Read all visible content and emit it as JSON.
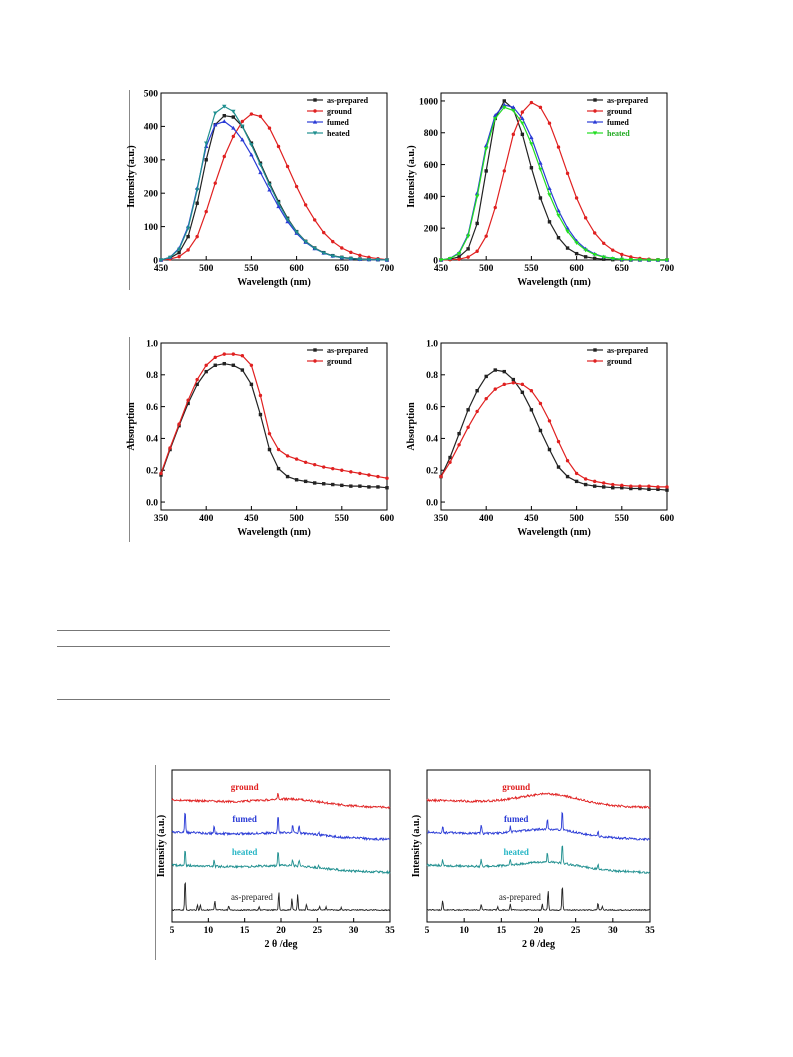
{
  "chart_data": [
    {
      "id": "pl_left",
      "type": "line",
      "xlabel": "Wavelength (nm)",
      "ylabel": "Intensity (a.u.)",
      "xlim": [
        450,
        700
      ],
      "ylim": [
        0,
        500
      ],
      "xticks": [
        450,
        500,
        550,
        600,
        650,
        700
      ],
      "yticks": [
        0,
        100,
        200,
        300,
        400,
        500
      ],
      "legend_position": "top-right",
      "series": [
        {
          "name": "as-prepared",
          "color": "#222222",
          "marker": "square",
          "x": [
            450,
            460,
            470,
            480,
            490,
            500,
            510,
            520,
            530,
            540,
            550,
            560,
            570,
            580,
            590,
            600,
            610,
            620,
            630,
            640,
            650,
            660,
            670,
            680,
            690,
            700
          ],
          "y": [
            0,
            6,
            22,
            70,
            170,
            300,
            405,
            432,
            428,
            400,
            350,
            290,
            230,
            175,
            125,
            85,
            56,
            36,
            22,
            13,
            8,
            5,
            3,
            2,
            1,
            0
          ]
        },
        {
          "name": "ground",
          "color": "#e02020",
          "marker": "circle",
          "x": [
            450,
            460,
            470,
            480,
            490,
            500,
            510,
            520,
            530,
            540,
            550,
            560,
            570,
            580,
            590,
            600,
            610,
            620,
            630,
            640,
            650,
            660,
            670,
            680,
            690,
            700
          ],
          "y": [
            0,
            3,
            10,
            30,
            70,
            145,
            230,
            310,
            370,
            415,
            437,
            430,
            395,
            340,
            280,
            220,
            165,
            120,
            82,
            55,
            36,
            23,
            14,
            8,
            4,
            1
          ]
        },
        {
          "name": "fumed",
          "color": "#2a3bd6",
          "marker": "triangle-up",
          "x": [
            450,
            460,
            470,
            480,
            490,
            500,
            510,
            520,
            530,
            540,
            550,
            560,
            570,
            580,
            590,
            600,
            610,
            620,
            630,
            640,
            650,
            660,
            670,
            680,
            690,
            700
          ],
          "y": [
            0,
            8,
            35,
            100,
            215,
            340,
            405,
            415,
            395,
            360,
            315,
            262,
            210,
            160,
            115,
            80,
            53,
            34,
            21,
            12,
            7,
            4,
            2,
            1,
            1,
            0
          ]
        },
        {
          "name": "heated",
          "color": "#1f8f8f",
          "marker": "triangle-down",
          "x": [
            450,
            460,
            470,
            480,
            490,
            500,
            510,
            520,
            530,
            540,
            550,
            560,
            570,
            580,
            590,
            600,
            610,
            620,
            630,
            640,
            650,
            660,
            670,
            680,
            690,
            700
          ],
          "y": [
            0,
            8,
            32,
            95,
            210,
            350,
            440,
            460,
            445,
            400,
            345,
            285,
            225,
            170,
            122,
            84,
            55,
            35,
            21,
            12,
            7,
            4,
            2,
            1,
            1,
            0
          ]
        }
      ]
    },
    {
      "id": "pl_right",
      "type": "line",
      "xlabel": "Wavelength (nm)",
      "ylabel": "Intensity (a.u.)",
      "xlim": [
        450,
        700
      ],
      "ylim": [
        0,
        1050
      ],
      "xticks": [
        450,
        500,
        550,
        600,
        650,
        700
      ],
      "yticks": [
        0,
        200,
        400,
        600,
        800,
        1000
      ],
      "legend_position": "top-right",
      "series": [
        {
          "name": "as-prepared",
          "color": "#222222",
          "marker": "square",
          "x": [
            450,
            460,
            470,
            480,
            490,
            500,
            510,
            520,
            530,
            540,
            550,
            560,
            570,
            580,
            590,
            600,
            610,
            620,
            630,
            640,
            650,
            660,
            670,
            680,
            690,
            700
          ],
          "y": [
            0,
            5,
            20,
            70,
            230,
            560,
            890,
            1000,
            950,
            790,
            580,
            390,
            240,
            140,
            75,
            40,
            20,
            10,
            5,
            2,
            1,
            0,
            0,
            0,
            0,
            0
          ]
        },
        {
          "name": "ground",
          "color": "#e02020",
          "marker": "circle",
          "x": [
            450,
            460,
            470,
            480,
            490,
            500,
            510,
            520,
            530,
            540,
            550,
            560,
            570,
            580,
            590,
            600,
            610,
            620,
            630,
            640,
            650,
            660,
            670,
            680,
            690,
            700
          ],
          "y": [
            0,
            2,
            5,
            18,
            55,
            150,
            330,
            560,
            790,
            930,
            990,
            960,
            860,
            710,
            545,
            390,
            265,
            170,
            105,
            62,
            35,
            19,
            10,
            5,
            2,
            1
          ]
        },
        {
          "name": "fumed",
          "color": "#2a3bd6",
          "marker": "triangle-up",
          "x": [
            450,
            460,
            470,
            480,
            490,
            500,
            510,
            520,
            530,
            540,
            550,
            560,
            570,
            580,
            590,
            600,
            610,
            620,
            630,
            640,
            650,
            660,
            670,
            680,
            690,
            700
          ],
          "y": [
            0,
            10,
            45,
            160,
            420,
            720,
            910,
            975,
            960,
            890,
            770,
            610,
            450,
            310,
            200,
            120,
            70,
            38,
            20,
            10,
            5,
            2,
            1,
            0,
            0,
            0
          ]
        },
        {
          "name": "heated",
          "color": "#22dd22",
          "marker": "triangle-down",
          "x": [
            450,
            460,
            470,
            480,
            490,
            500,
            510,
            520,
            530,
            540,
            550,
            560,
            570,
            580,
            590,
            600,
            610,
            620,
            630,
            640,
            650,
            660,
            670,
            680,
            690,
            700
          ],
          "y": [
            0,
            9,
            40,
            150,
            400,
            700,
            890,
            960,
            940,
            860,
            730,
            570,
            410,
            280,
            180,
            108,
            62,
            34,
            18,
            9,
            4,
            2,
            1,
            0,
            0,
            0
          ]
        }
      ]
    },
    {
      "id": "abs_left",
      "type": "line",
      "xlabel": "Wavelength (nm)",
      "ylabel": "Absorption",
      "xlim": [
        350,
        600
      ],
      "ylim": [
        -0.05,
        1.0
      ],
      "xticks": [
        350,
        400,
        450,
        500,
        550,
        600
      ],
      "yticks": [
        0.0,
        0.2,
        0.4,
        0.6,
        0.8,
        1.0
      ],
      "legend_position": "top-right",
      "series": [
        {
          "name": "as-prepared",
          "color": "#222222",
          "marker": "square",
          "x": [
            350,
            360,
            370,
            380,
            390,
            400,
            410,
            420,
            430,
            440,
            450,
            460,
            470,
            480,
            490,
            500,
            510,
            520,
            530,
            540,
            550,
            560,
            570,
            580,
            590,
            600
          ],
          "y": [
            0.17,
            0.33,
            0.48,
            0.62,
            0.74,
            0.82,
            0.86,
            0.87,
            0.86,
            0.83,
            0.74,
            0.55,
            0.33,
            0.21,
            0.16,
            0.14,
            0.13,
            0.12,
            0.115,
            0.11,
            0.105,
            0.1,
            0.1,
            0.095,
            0.095,
            0.09
          ]
        },
        {
          "name": "ground",
          "color": "#e02020",
          "marker": "circle",
          "x": [
            350,
            360,
            370,
            380,
            390,
            400,
            410,
            420,
            430,
            440,
            450,
            460,
            470,
            480,
            490,
            500,
            510,
            520,
            530,
            540,
            550,
            560,
            570,
            580,
            590,
            600
          ],
          "y": [
            0.18,
            0.34,
            0.49,
            0.64,
            0.77,
            0.86,
            0.91,
            0.93,
            0.93,
            0.92,
            0.86,
            0.67,
            0.43,
            0.33,
            0.29,
            0.27,
            0.25,
            0.235,
            0.22,
            0.21,
            0.2,
            0.19,
            0.18,
            0.17,
            0.16,
            0.15
          ]
        }
      ]
    },
    {
      "id": "abs_right",
      "type": "line",
      "xlabel": "Wavelength (nm)",
      "ylabel": "Absorption",
      "xlim": [
        350,
        600
      ],
      "ylim": [
        -0.05,
        1.0
      ],
      "xticks": [
        350,
        400,
        450,
        500,
        550,
        600
      ],
      "yticks": [
        0.0,
        0.2,
        0.4,
        0.6,
        0.8,
        1.0
      ],
      "legend_position": "top-right",
      "series": [
        {
          "name": "as-prepared",
          "color": "#222222",
          "marker": "square",
          "x": [
            350,
            360,
            370,
            380,
            390,
            400,
            410,
            420,
            430,
            440,
            450,
            460,
            470,
            480,
            490,
            500,
            510,
            520,
            530,
            540,
            550,
            560,
            570,
            580,
            590,
            600
          ],
          "y": [
            0.16,
            0.28,
            0.43,
            0.58,
            0.7,
            0.79,
            0.83,
            0.82,
            0.77,
            0.69,
            0.58,
            0.45,
            0.33,
            0.22,
            0.16,
            0.13,
            0.11,
            0.1,
            0.095,
            0.09,
            0.09,
            0.085,
            0.085,
            0.08,
            0.08,
            0.075
          ]
        },
        {
          "name": "ground",
          "color": "#e02020",
          "marker": "circle",
          "x": [
            350,
            360,
            370,
            380,
            390,
            400,
            410,
            420,
            430,
            440,
            450,
            460,
            470,
            480,
            490,
            500,
            510,
            520,
            530,
            540,
            550,
            560,
            570,
            580,
            590,
            600
          ],
          "y": [
            0.16,
            0.25,
            0.36,
            0.47,
            0.57,
            0.65,
            0.71,
            0.74,
            0.75,
            0.74,
            0.7,
            0.62,
            0.51,
            0.38,
            0.26,
            0.18,
            0.145,
            0.13,
            0.12,
            0.11,
            0.105,
            0.1,
            0.1,
            0.1,
            0.095,
            0.095
          ]
        }
      ]
    },
    {
      "id": "xrd_left",
      "type": "line",
      "xlabel": "2 θ /deg",
      "ylabel": "Intensity (a.u.)",
      "xlim": [
        5,
        35
      ],
      "xticks": [
        5,
        10,
        15,
        20,
        25,
        30,
        35
      ],
      "traces": [
        {
          "name": "ground",
          "color": "#e02020",
          "label_x": 11.0,
          "peaks": [
            [
              19.6,
              0.35
            ]
          ]
        },
        {
          "name": "fumed",
          "color": "#2a3bd6",
          "label_x": 11.0,
          "peaks": [
            [
              6.8,
              1.0
            ],
            [
              10.8,
              0.35
            ],
            [
              19.6,
              0.8
            ],
            [
              21.6,
              0.35
            ],
            [
              22.5,
              0.35
            ],
            [
              25.2,
              0.12
            ]
          ]
        },
        {
          "name": "heated",
          "color": "#1f8f8f",
          "label_x": 11.0,
          "peaks": [
            [
              6.8,
              0.8
            ],
            [
              10.8,
              0.35
            ],
            [
              19.6,
              0.8
            ],
            [
              21.6,
              0.3
            ],
            [
              22.5,
              0.3
            ],
            [
              25.2,
              0.1
            ]
          ]
        },
        {
          "name": "as-prepared",
          "color": "#222222",
          "label_x": 12.0,
          "peaks": [
            [
              6.8,
              1.6
            ],
            [
              8.5,
              0.25
            ],
            [
              8.9,
              0.25
            ],
            [
              10.9,
              0.45
            ],
            [
              12.8,
              0.2
            ],
            [
              17.0,
              0.15
            ],
            [
              19.7,
              0.9
            ],
            [
              21.5,
              0.6
            ],
            [
              22.3,
              0.8
            ],
            [
              23.5,
              0.3
            ],
            [
              25.3,
              0.2
            ],
            [
              26.2,
              0.15
            ],
            [
              28.3,
              0.12
            ]
          ]
        }
      ]
    },
    {
      "id": "xrd_right",
      "type": "line",
      "xlabel": "2 θ /deg",
      "ylabel": "Intensity (a.u.)",
      "xlim": [
        5,
        35
      ],
      "xticks": [
        5,
        10,
        15,
        20,
        25,
        30,
        35
      ],
      "traces": [
        {
          "name": "ground",
          "color": "#e02020",
          "label_x": 13.0,
          "peaks": []
        },
        {
          "name": "fumed",
          "color": "#2a3bd6",
          "label_x": 13.0,
          "peaks": [
            [
              7.1,
              0.3
            ],
            [
              12.3,
              0.4
            ],
            [
              16.2,
              0.25
            ],
            [
              21.2,
              0.5
            ],
            [
              23.2,
              0.9
            ],
            [
              28.0,
              0.2
            ]
          ]
        },
        {
          "name": "heated",
          "color": "#1f8f8f",
          "label_x": 13.0,
          "peaks": [
            [
              7.1,
              0.3
            ],
            [
              12.3,
              0.35
            ],
            [
              16.2,
              0.3
            ],
            [
              21.2,
              0.5
            ],
            [
              23.2,
              1.0
            ],
            [
              28.0,
              0.25
            ]
          ]
        },
        {
          "name": "as-prepared",
          "color": "#222222",
          "label_x": 13.5,
          "peaks": [
            [
              7.1,
              0.5
            ],
            [
              12.3,
              0.3
            ],
            [
              14.5,
              0.15
            ],
            [
              16.2,
              0.3
            ],
            [
              20.5,
              0.3
            ],
            [
              21.3,
              1.0
            ],
            [
              23.2,
              1.3
            ],
            [
              28.0,
              0.35
            ],
            [
              28.6,
              0.2
            ]
          ]
        }
      ]
    }
  ]
}
